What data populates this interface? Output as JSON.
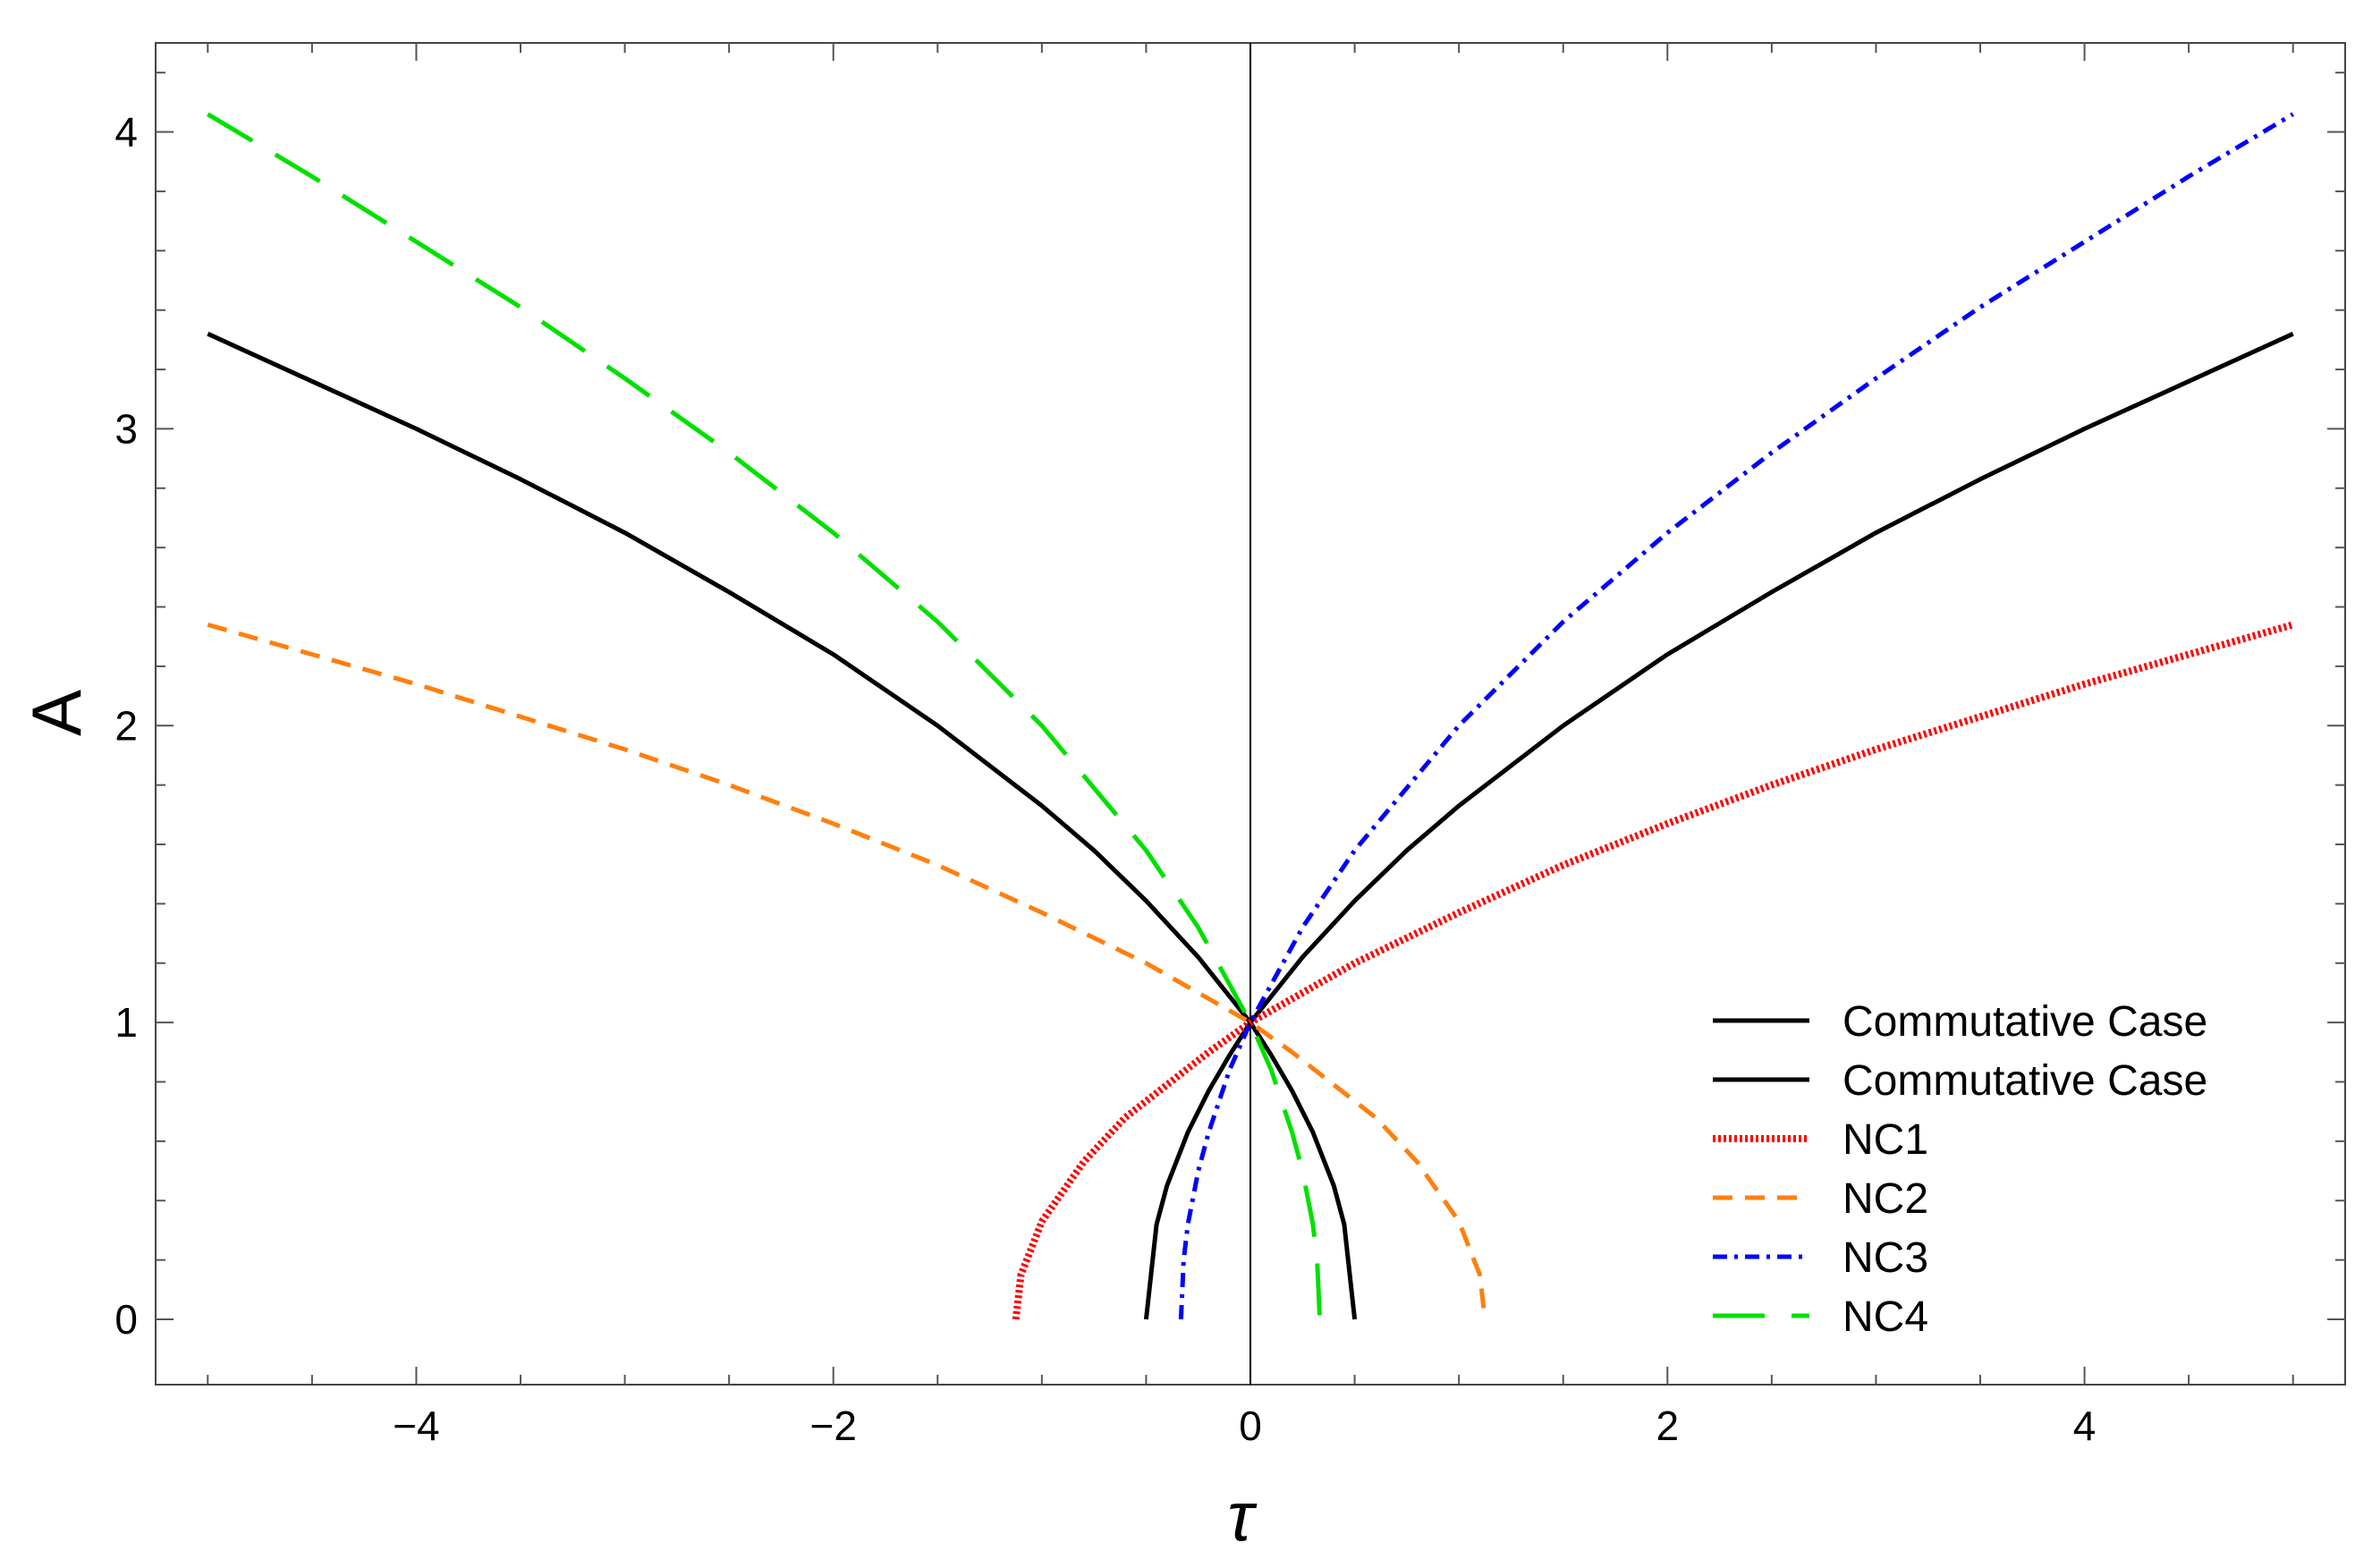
{
  "chart_data": {
    "type": "line",
    "title": "",
    "xlabel": "τ",
    "ylabel": "A",
    "xlim": [
      -5.25,
      5.25
    ],
    "ylim": [
      -0.22,
      4.3
    ],
    "x_ticks": [
      -4,
      -2,
      0,
      2,
      4
    ],
    "x_tick_labels": [
      "−4",
      "−2",
      "0",
      "2",
      "4"
    ],
    "y_ticks": [
      0,
      1,
      2,
      3,
      4
    ],
    "y_tick_labels": [
      "0",
      "1",
      "2",
      "3",
      "4"
    ],
    "grid": false,
    "frame": true,
    "zero_line_x": 0,
    "legend_position": "bottom-right",
    "series": [
      {
        "name": "Commutative Case",
        "color": "#000000",
        "style": "solid",
        "x": [
          -0.5,
          -0.45,
          -0.4,
          -0.3,
          -0.2,
          -0.1,
          0,
          0.25,
          0.5,
          0.75,
          1,
          1.5,
          2,
          2.5,
          3,
          3.5,
          4,
          4.5,
          5
        ],
        "y": [
          0,
          0.32,
          0.45,
          0.63,
          0.77,
          0.89,
          1,
          1.22,
          1.41,
          1.58,
          1.73,
          2.0,
          2.24,
          2.45,
          2.65,
          2.83,
          3.0,
          3.16,
          3.32
        ]
      },
      {
        "name": "Commutative Case",
        "color": "#000000",
        "style": "solid",
        "x": [
          -5,
          -4.5,
          -4,
          -3.5,
          -3,
          -2.5,
          -2,
          -1.5,
          -1,
          -0.75,
          -0.5,
          -0.25,
          0,
          0.1,
          0.2,
          0.3,
          0.4,
          0.45,
          0.5
        ],
        "y": [
          3.32,
          3.16,
          3.0,
          2.83,
          2.65,
          2.45,
          2.24,
          2.0,
          1.73,
          1.58,
          1.41,
          1.22,
          1,
          0.89,
          0.77,
          0.63,
          0.45,
          0.32,
          0
        ]
      },
      {
        "name": "NC1",
        "color": "#ff0000",
        "style": "dotted",
        "x": [
          -1.125,
          -1.1,
          -1.0,
          -0.8,
          -0.6,
          -0.4,
          -0.2,
          0,
          0.5,
          1,
          1.5,
          2,
          2.5,
          3,
          3.5,
          4,
          4.5,
          5
        ],
        "y": [
          0,
          0.15,
          0.33,
          0.53,
          0.68,
          0.79,
          0.9,
          1,
          1.2,
          1.37,
          1.53,
          1.67,
          1.8,
          1.92,
          2.03,
          2.14,
          2.24,
          2.34
        ]
      },
      {
        "name": "NC2",
        "color": "#ff7f0e",
        "style": "dashed",
        "x": [
          -5,
          -4.5,
          -4,
          -3.5,
          -3,
          -2.5,
          -2,
          -1.5,
          -1,
          -0.5,
          0,
          0.2,
          0.4,
          0.6,
          0.8,
          1.0,
          1.1,
          1.125
        ],
        "y": [
          2.34,
          2.24,
          2.14,
          2.03,
          1.92,
          1.8,
          1.67,
          1.53,
          1.37,
          1.2,
          1,
          0.9,
          0.79,
          0.68,
          0.53,
          0.33,
          0.15,
          0
        ]
      },
      {
        "name": "NC3",
        "color": "#0000ff",
        "style": "dash-dot",
        "x": [
          -0.333,
          -0.32,
          -0.3,
          -0.25,
          -0.2,
          -0.1,
          0,
          0.25,
          0.5,
          1,
          1.5,
          2,
          2.5,
          3,
          3.5,
          4,
          4.5,
          5
        ],
        "y": [
          0,
          0.2,
          0.32,
          0.5,
          0.63,
          0.84,
          1,
          1.32,
          1.58,
          2.0,
          2.35,
          2.65,
          2.92,
          3.17,
          3.41,
          3.63,
          3.85,
          4.06
        ]
      },
      {
        "name": "NC4",
        "color": "#00e000",
        "style": "long-dashed",
        "x": [
          -5,
          -4.5,
          -4,
          -3.5,
          -3,
          -2.5,
          -2,
          -1.5,
          -1,
          -0.5,
          -0.25,
          0,
          0.1,
          0.2,
          0.25,
          0.3,
          0.32,
          0.333
        ],
        "y": [
          4.06,
          3.85,
          3.63,
          3.41,
          3.17,
          2.92,
          2.65,
          2.35,
          2.0,
          1.58,
          1.32,
          1,
          0.84,
          0.63,
          0.5,
          0.32,
          0.2,
          0
        ]
      }
    ]
  }
}
